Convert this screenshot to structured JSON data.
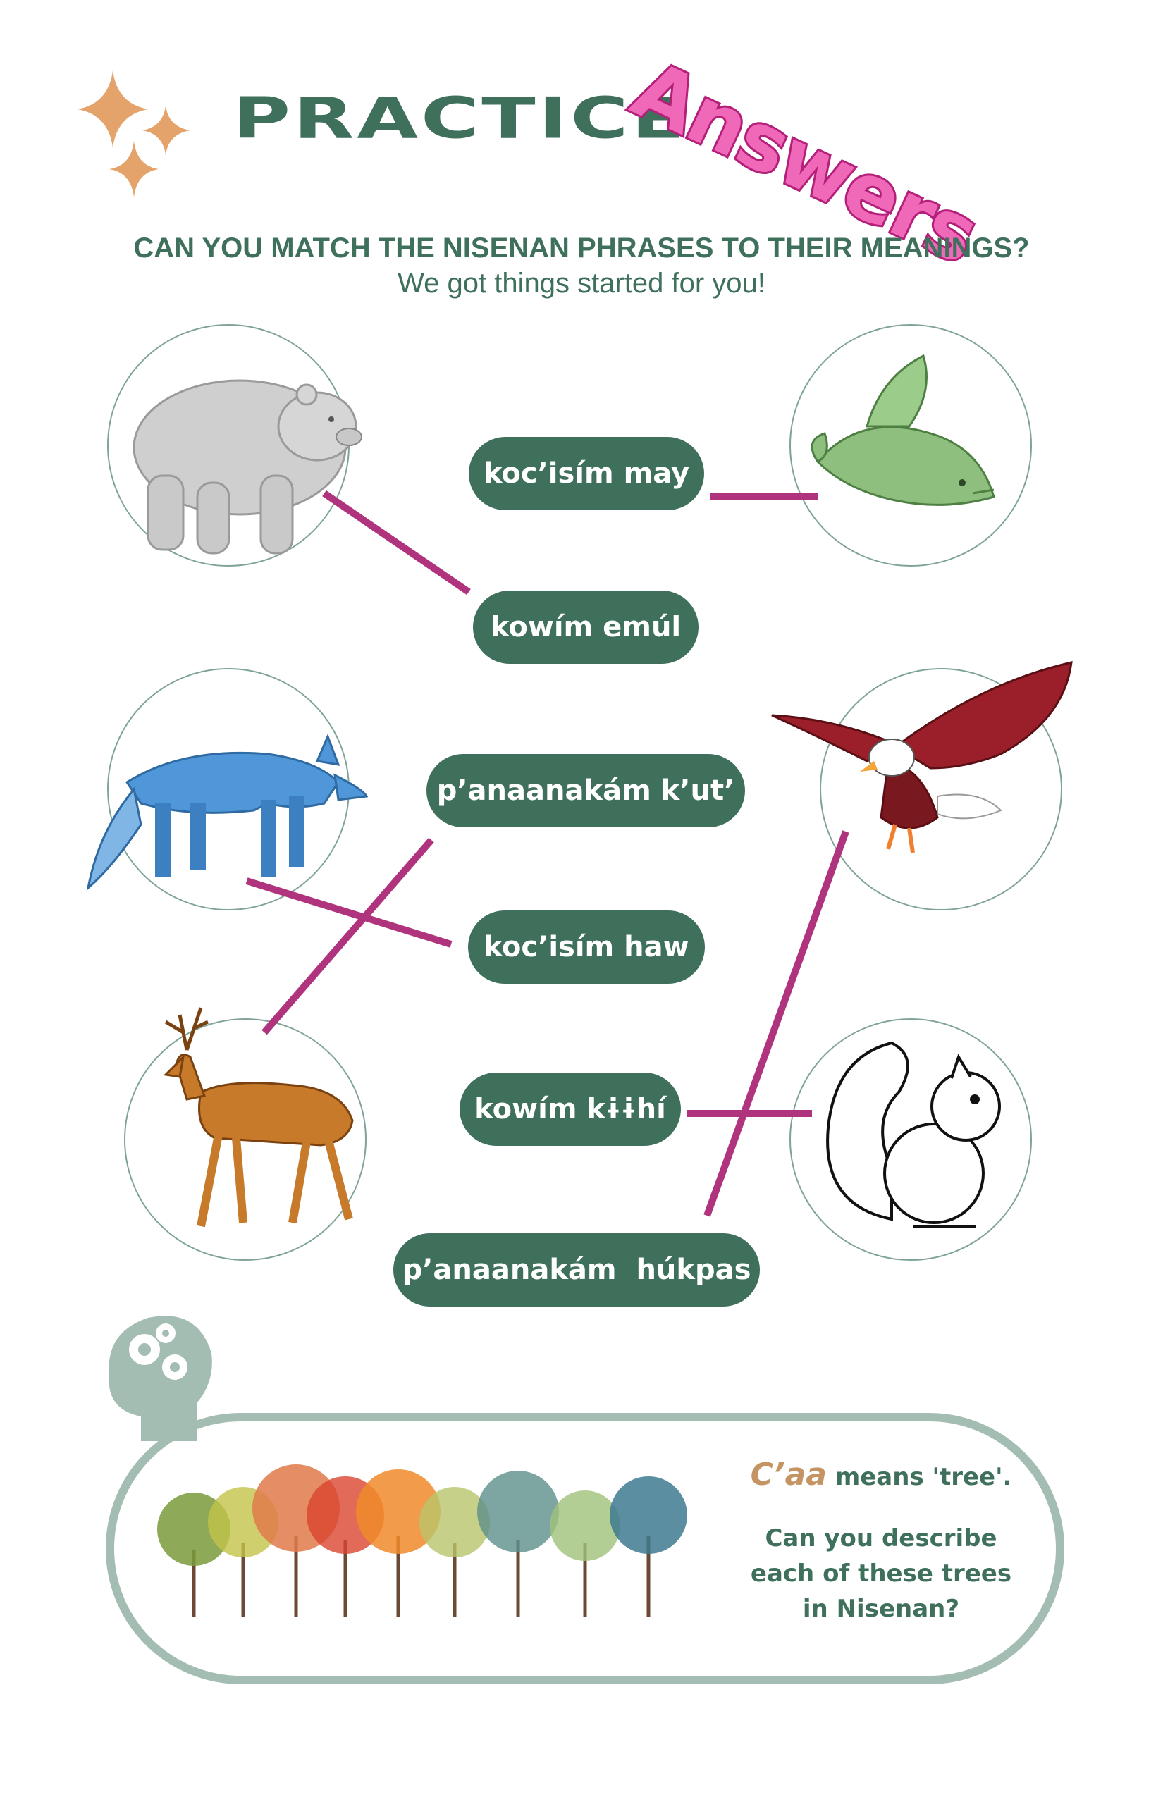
{
  "header": {
    "title": "PRACTICE",
    "answers_stamp": "Answers",
    "instruction": "CAN YOU MATCH THE NISENAN PHRASES TO THEIR MEANINGS?",
    "subinstruction": "We got things started for you!"
  },
  "phrases": [
    {
      "label": "koc’isím may"
    },
    {
      "label": "kowím emúl"
    },
    {
      "label": "p’anaanakám k’ut’"
    },
    {
      "label": "koc’isím haw"
    },
    {
      "label": "kowím kɨɨhí"
    },
    {
      "label": "p’anaanakám  húkpas"
    }
  ],
  "animals": [
    "white-bear",
    "green-salmon",
    "blue-fox",
    "red-eagle",
    "brown-deer",
    "white-squirrel"
  ],
  "tree_note": {
    "word": "C’aa",
    "meaning": " means 'tree'.",
    "question_1": "Can you describe",
    "question_2": "each of these trees",
    "question_3": "in Nisenan?"
  },
  "colors": {
    "green": "#3f705c",
    "pink": "#f068b8",
    "line": "#b0347d",
    "sparkle": "#e4a36a",
    "tree_word": "#c49462"
  }
}
